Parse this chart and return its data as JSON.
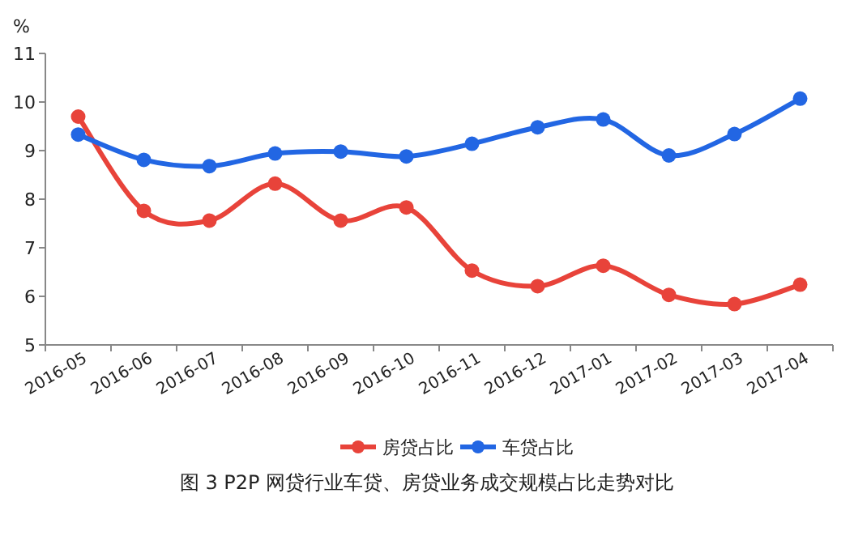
{
  "chart_data": {
    "type": "line",
    "title": "图 3 P2P 网贷行业车贷、房贷业务成交规模占比走势对比",
    "ylabel": "%",
    "categories": [
      "2016-05",
      "2016-06",
      "2016-07",
      "2016-08",
      "2016-09",
      "2016-10",
      "2016-11",
      "2016-12",
      "2017-01",
      "2017-02",
      "2017-03",
      "2017-04"
    ],
    "series": [
      {
        "name": "房贷占比",
        "color": "#e8433a",
        "values": [
          9.7,
          7.76,
          7.56,
          8.32,
          7.56,
          7.83,
          6.53,
          6.21,
          6.63,
          6.03,
          5.84,
          6.24
        ]
      },
      {
        "name": "车贷占比",
        "color": "#2266e3",
        "values": [
          9.33,
          8.81,
          8.68,
          8.94,
          8.98,
          8.88,
          9.14,
          9.48,
          9.64,
          8.9,
          9.34,
          10.07
        ]
      }
    ],
    "ylim": [
      5,
      11
    ],
    "yticks": [
      5,
      6,
      7,
      8,
      9,
      10,
      11
    ],
    "grid": false,
    "legend": "bottom",
    "marker": "circle"
  }
}
